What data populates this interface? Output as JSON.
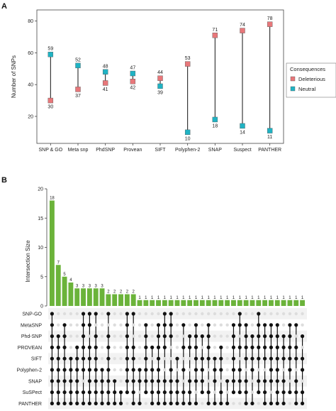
{
  "panels": {
    "a": "A",
    "b": "B"
  },
  "colors": {
    "deleterious": "#e8777a",
    "neutral": "#1fb3c4",
    "bar": "#6bb33a",
    "dot_on": "#111111",
    "dot_off": "#dddddd",
    "stripe": "#f2f2f2"
  },
  "chart_data": [
    {
      "type": "scatter",
      "panel": "A",
      "categories": [
        "SNP & GO",
        "Meta snp",
        "PhdSNP",
        "Provean",
        "SIFT",
        "Polyphen-2",
        "SNAP",
        "Suspect",
        "PANTHER"
      ],
      "series": [
        {
          "name": "Deleterious",
          "values": [
            30,
            37,
            41,
            42,
            44,
            53,
            71,
            74,
            78
          ]
        },
        {
          "name": "Neutral",
          "values": [
            59,
            52,
            48,
            47,
            39,
            10,
            18,
            14,
            11
          ]
        }
      ],
      "ylabel": "Number of SNPs",
      "xlabel": "",
      "ylim": [
        3,
        87
      ],
      "yticks": [
        20,
        40,
        60,
        80
      ],
      "legend_title": "Consequences",
      "legend_position": "right",
      "grid": false
    },
    {
      "type": "bar",
      "panel": "B",
      "ylabel": "Intersection Size",
      "ylim": [
        0,
        20
      ],
      "yticks": [
        0,
        5,
        10,
        15,
        20
      ],
      "values": [
        18,
        7,
        5,
        4,
        3,
        3,
        3,
        3,
        3,
        2,
        2,
        2,
        2,
        2,
        1,
        1,
        1,
        1,
        1,
        1,
        1,
        1,
        1,
        1,
        1,
        1,
        1,
        1,
        1,
        1,
        1,
        1,
        1,
        1,
        1,
        1,
        1,
        1,
        1,
        1,
        1
      ],
      "sets": [
        "SNP-GO",
        "MetaSNP",
        "Phd-SNP",
        "PROVEAN",
        "SIFT",
        "Polyphen-2",
        "SNAP",
        "SuSPect",
        "PANTHER"
      ],
      "intersections": [
        [
          0,
          1,
          2,
          3,
          4,
          5,
          6,
          7,
          8
        ],
        [
          2,
          3,
          4,
          5,
          6,
          7,
          8
        ],
        [
          1,
          2,
          3,
          4,
          5,
          6,
          7,
          8
        ],
        [
          4,
          5,
          6,
          7,
          8
        ],
        [
          3,
          4,
          5,
          6,
          7,
          8
        ],
        [
          0,
          1,
          2,
          3,
          4,
          5,
          7,
          8
        ],
        [
          0,
          1,
          3,
          4,
          5,
          6,
          7,
          8
        ],
        [
          0,
          2,
          3,
          4,
          5,
          6,
          7,
          8
        ],
        [
          5,
          6,
          7,
          8
        ],
        [
          0,
          2,
          3,
          4,
          5,
          6,
          7,
          8
        ],
        [
          6,
          7,
          8
        ],
        [
          7,
          8
        ],
        [
          0,
          1,
          2,
          3,
          4,
          5,
          6,
          7
        ],
        [
          0,
          3,
          4,
          5,
          6,
          7,
          8
        ],
        [
          5,
          6,
          8
        ],
        [
          1,
          2,
          3,
          4,
          5,
          6,
          7
        ],
        [
          3,
          5,
          6,
          7,
          8
        ],
        [
          1,
          2,
          3,
          4,
          5,
          6,
          7,
          8
        ],
        [
          0,
          1,
          2,
          3,
          6,
          7,
          8
        ],
        [
          0,
          1,
          2,
          5,
          6,
          7,
          8
        ],
        [
          4,
          6,
          7,
          8
        ],
        [
          1,
          3,
          5,
          7,
          8
        ],
        [
          2,
          3,
          6,
          7,
          8
        ],
        [
          1,
          2,
          3,
          4,
          5,
          6,
          8
        ],
        [
          2,
          4,
          5,
          6,
          7
        ],
        [
          1,
          2,
          3,
          4,
          7,
          8
        ],
        [
          4,
          5,
          6,
          8
        ],
        [
          3,
          4,
          5,
          7,
          8
        ],
        [
          6,
          8
        ],
        [
          1,
          2,
          3,
          4,
          5,
          6,
          7
        ],
        [
          0,
          1,
          3,
          5,
          6,
          7
        ],
        [
          1,
          2,
          3,
          4,
          6,
          7,
          8
        ],
        [
          2,
          3,
          4,
          5,
          8
        ],
        [
          0,
          1,
          2,
          3,
          4,
          6,
          7
        ],
        [
          1,
          2,
          3,
          4,
          6,
          7,
          8
        ],
        [
          1,
          2,
          3,
          4,
          5,
          6,
          8
        ],
        [
          1,
          2,
          3,
          4,
          5,
          6,
          7,
          8
        ],
        [
          2,
          3,
          4,
          6,
          7,
          8
        ],
        [
          1,
          2,
          3,
          4,
          5,
          7
        ],
        [
          1,
          3,
          4,
          6,
          7,
          8
        ],
        [
          2,
          4,
          5,
          7,
          8
        ]
      ]
    }
  ]
}
